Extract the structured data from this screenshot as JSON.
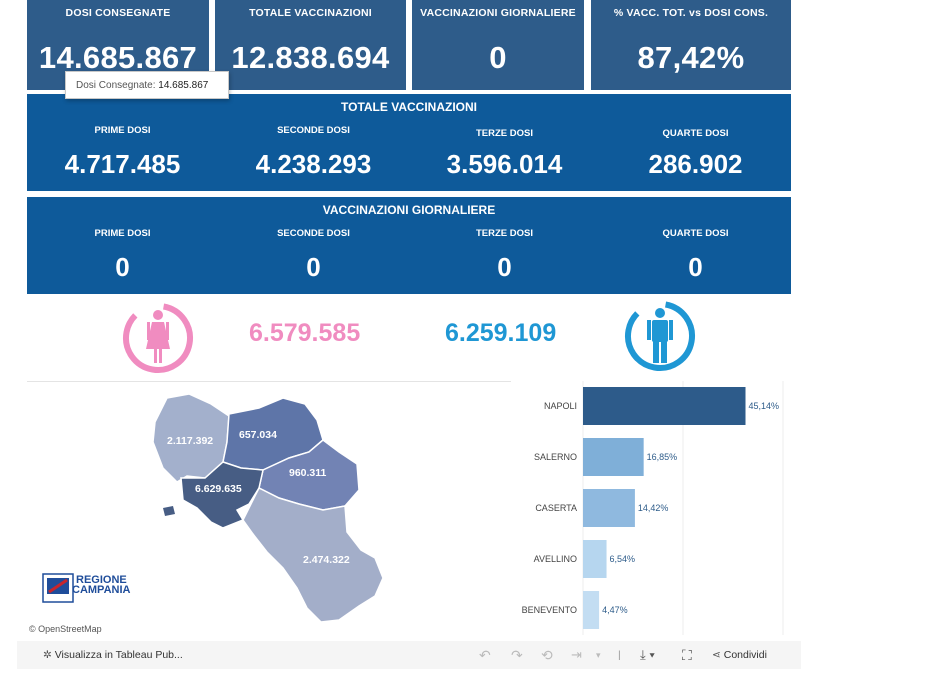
{
  "kpis": [
    {
      "label": "DOSI CONSEGNATE",
      "value": "14.685.867"
    },
    {
      "label": "TOTALE VACCINAZIONI",
      "value": "12.838.694"
    },
    {
      "label": "VACCINAZIONI GIORNALIERE",
      "value": "0"
    },
    {
      "label": "% VACC. TOT. vs DOSI CONS.",
      "value": "87,42%"
    }
  ],
  "tooltip": {
    "label": "Dosi Consegnate:",
    "value": "14.685.867"
  },
  "totale": {
    "title": "TOTALE VACCINAZIONI",
    "cells": [
      {
        "label": "PRIME DOSI",
        "value": "4.717.485"
      },
      {
        "label": "SECONDE DOSI",
        "value": "4.238.293"
      },
      {
        "label": "TERZE DOSI",
        "value": "3.596.014"
      },
      {
        "label": "QUARTE DOSI",
        "value": "286.902"
      }
    ]
  },
  "giornaliere": {
    "title": "VACCINAZIONI GIORNALIERE",
    "cells": [
      {
        "label": "PRIME DOSI",
        "value": "0"
      },
      {
        "label": "SECONDE DOSI",
        "value": "0"
      },
      {
        "label": "TERZE DOSI",
        "value": "0"
      },
      {
        "label": "QUARTE DOSI",
        "value": "0"
      }
    ]
  },
  "gender": {
    "female_value": "6.579.585",
    "male_value": "6.259.109",
    "female_color": "#f08cc0",
    "male_color": "#1f97d4"
  },
  "map": {
    "regions": [
      "2.117.392",
      "657.034",
      "960.311",
      "6.629.635",
      "2.474.322"
    ],
    "logo_line1": "REGIONE",
    "logo_line2": "CAMPANIA",
    "attribution": "© OpenStreetMap"
  },
  "chart_data": {
    "type": "bar",
    "orientation": "horizontal",
    "categories": [
      "NAPOLI",
      "SALERNO",
      "CASERTA",
      "AVELLINO",
      "BENEVENTO"
    ],
    "values": [
      45.14,
      16.85,
      14.42,
      6.54,
      4.47
    ],
    "labels": [
      "45,14%",
      "16,85%",
      "14,42%",
      "6,54%",
      "4,47%"
    ],
    "colors": [
      "#2d5b8a",
      "#7fafd8",
      "#8fb9df",
      "#b6d6ef",
      "#c3ddf2"
    ]
  },
  "toolbar": {
    "view_label": "Visualizza in Tableau Pub...",
    "share_label": "Condividi"
  },
  "colors": {
    "kpi": "#2e5c8a",
    "panel": "#0e5a9a"
  }
}
